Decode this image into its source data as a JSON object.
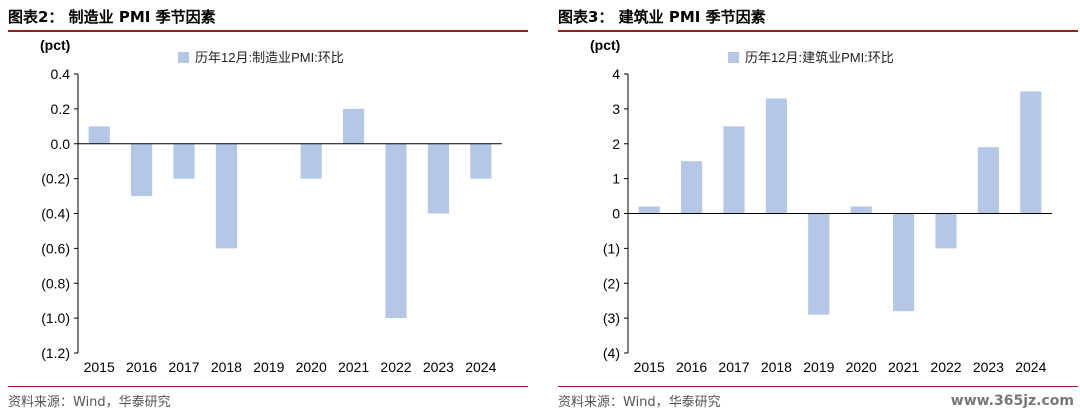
{
  "panels": [
    {
      "title": "图表2：  制造业 PMI 季节因素",
      "source": "资料来源：Wind，华泰研究",
      "chart_data": {
        "type": "bar",
        "unit_label": "(pct)",
        "categories": [
          "2015",
          "2016",
          "2017",
          "2018",
          "2019",
          "2020",
          "2021",
          "2022",
          "2023",
          "2024"
        ],
        "series": [
          {
            "name": "历年12月:制造业PMI:环比",
            "values": [
              0.1,
              -0.3,
              -0.2,
              -0.6,
              0.0,
              -0.2,
              0.2,
              -1.0,
              -0.4,
              -0.2
            ]
          }
        ],
        "ylim": [
          -1.2,
          0.4
        ],
        "yticks": [
          0.4,
          0.2,
          0.0,
          -0.2,
          -0.4,
          -0.6,
          -0.8,
          -1.0,
          -1.2
        ],
        "ytick_labels": [
          "0.4",
          "0.2",
          "0.0",
          "(0.2)",
          "(0.4)",
          "(0.6)",
          "(0.8)",
          "(1.0)",
          "(1.2)"
        ],
        "legend_position": "top-center",
        "bar_color": "#b4c7e7",
        "grid": false
      }
    },
    {
      "title": "图表3：  建筑业 PMI 季节因素",
      "source": "资料来源：Wind，华泰研究",
      "chart_data": {
        "type": "bar",
        "unit_label": "(pct)",
        "categories": [
          "2015",
          "2016",
          "2017",
          "2018",
          "2019",
          "2020",
          "2021",
          "2022",
          "2023",
          "2024"
        ],
        "series": [
          {
            "name": "历年12月:建筑业PMI:环比",
            "values": [
              0.2,
              1.5,
              2.5,
              3.3,
              -2.9,
              0.2,
              -2.8,
              -1.0,
              1.9,
              3.5
            ]
          }
        ],
        "ylim": [
          -4,
          4
        ],
        "yticks": [
          4,
          3,
          2,
          1,
          0,
          -1,
          -2,
          -3,
          -4
        ],
        "ytick_labels": [
          "4",
          "3",
          "2",
          "1",
          "0",
          "(1)",
          "(2)",
          "(3)",
          "(4)"
        ],
        "legend_position": "top-center",
        "bar_color": "#b4c7e7",
        "grid": false
      }
    }
  ],
  "watermark": "www.365jz.com"
}
